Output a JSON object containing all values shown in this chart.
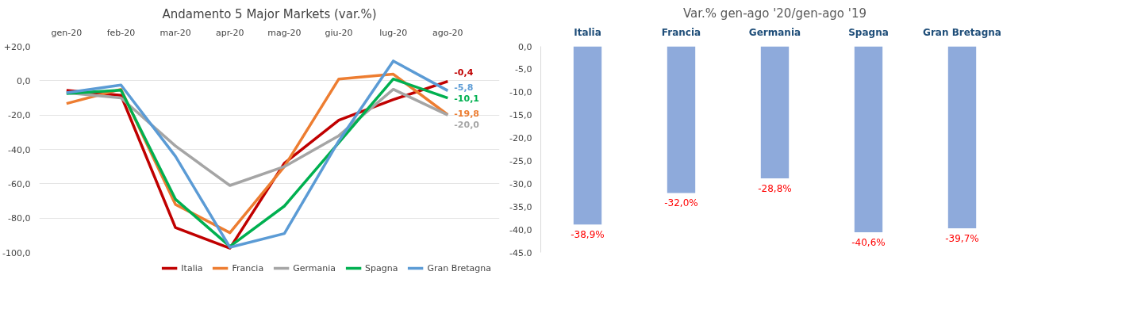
{
  "chart_data": [
    {
      "type": "line",
      "title": "Andamento 5 Major Markets (var.%)",
      "categories": [
        "gen-20",
        "feb-20",
        "mar-20",
        "apr-20",
        "mag-20",
        "giu-20",
        "lug-20",
        "ago-20"
      ],
      "series": [
        {
          "name": "Italia",
          "color": "#c00000",
          "values": [
            -5.6,
            -8.5,
            -85.5,
            -97.5,
            -48,
            -23,
            -11,
            -0.4
          ],
          "value_labels": [
            null,
            null,
            null,
            null,
            null,
            null,
            null,
            "-0,4"
          ]
        },
        {
          "name": "Francia",
          "color": "#ed7d31",
          "values": [
            -13.3,
            -5,
            -72,
            -88.5,
            -50,
            1,
            3.8,
            -19.8
          ],
          "value_labels": [
            null,
            null,
            null,
            null,
            null,
            null,
            null,
            "-19,8"
          ]
        },
        {
          "name": "Germania",
          "color": "#a5a5a5",
          "values": [
            -7,
            -10,
            -38,
            -61,
            -50,
            -32,
            -5,
            -20.0
          ],
          "value_labels": [
            null,
            null,
            null,
            null,
            null,
            null,
            null,
            "-20,0"
          ]
        },
        {
          "name": "Spagna",
          "color": "#00b050",
          "values": [
            -7.5,
            -5.5,
            -69,
            -96.5,
            -73,
            -36,
            1,
            -10.1
          ],
          "value_labels": [
            null,
            null,
            null,
            null,
            null,
            null,
            null,
            "-10,1"
          ]
        },
        {
          "name": "Gran Bretagna",
          "color": "#5b9bd5",
          "values": [
            -7,
            -2.5,
            -44,
            -97,
            -89,
            -35,
            11.5,
            -5.8
          ],
          "value_labels": [
            null,
            null,
            null,
            null,
            null,
            null,
            null,
            "-5,8"
          ]
        }
      ],
      "ylim": [
        -100,
        20
      ],
      "yticks": [
        {
          "value": -100,
          "label": "-100,0"
        },
        {
          "value": -80,
          "label": "-80,0"
        },
        {
          "value": -60,
          "label": "-60,0"
        },
        {
          "value": -40,
          "label": "-40,0"
        },
        {
          "value": -20,
          "label": "-20,0"
        },
        {
          "value": 0,
          "label": "0,0"
        },
        {
          "value": 20,
          "label": "+20,0"
        }
      ],
      "grid": "y",
      "legend": "bottom",
      "line_style": "solid"
    },
    {
      "type": "bar",
      "title": "Var.% gen-ago '20/gen-ago '19",
      "categories": [
        "Italia",
        "Francia",
        "Germania",
        "Spagna",
        "Gran Bretagna"
      ],
      "values": [
        -38.9,
        -32.0,
        -28.8,
        -40.6,
        -39.7
      ],
      "color": "#8eaadb",
      "value_labels": [
        "-38,9%",
        "-32,0%",
        "-28,8%",
        "-40,6%",
        "-39,7%"
      ],
      "ylim": [
        -45,
        0
      ],
      "yticks": [
        {
          "value": 0,
          "label": "0,0"
        },
        {
          "value": -5,
          "label": "-5,0"
        },
        {
          "value": -10,
          "label": "-10,0"
        },
        {
          "value": -15,
          "label": "-15,0"
        },
        {
          "value": -20,
          "label": "-20,0"
        },
        {
          "value": -25,
          "label": "-25,0"
        },
        {
          "value": -30,
          "label": "-30,0"
        },
        {
          "value": -35,
          "label": "-35,0"
        },
        {
          "value": -40,
          "label": "-40,0"
        },
        {
          "value": -45,
          "label": "-45,0"
        }
      ],
      "grid": false
    }
  ]
}
